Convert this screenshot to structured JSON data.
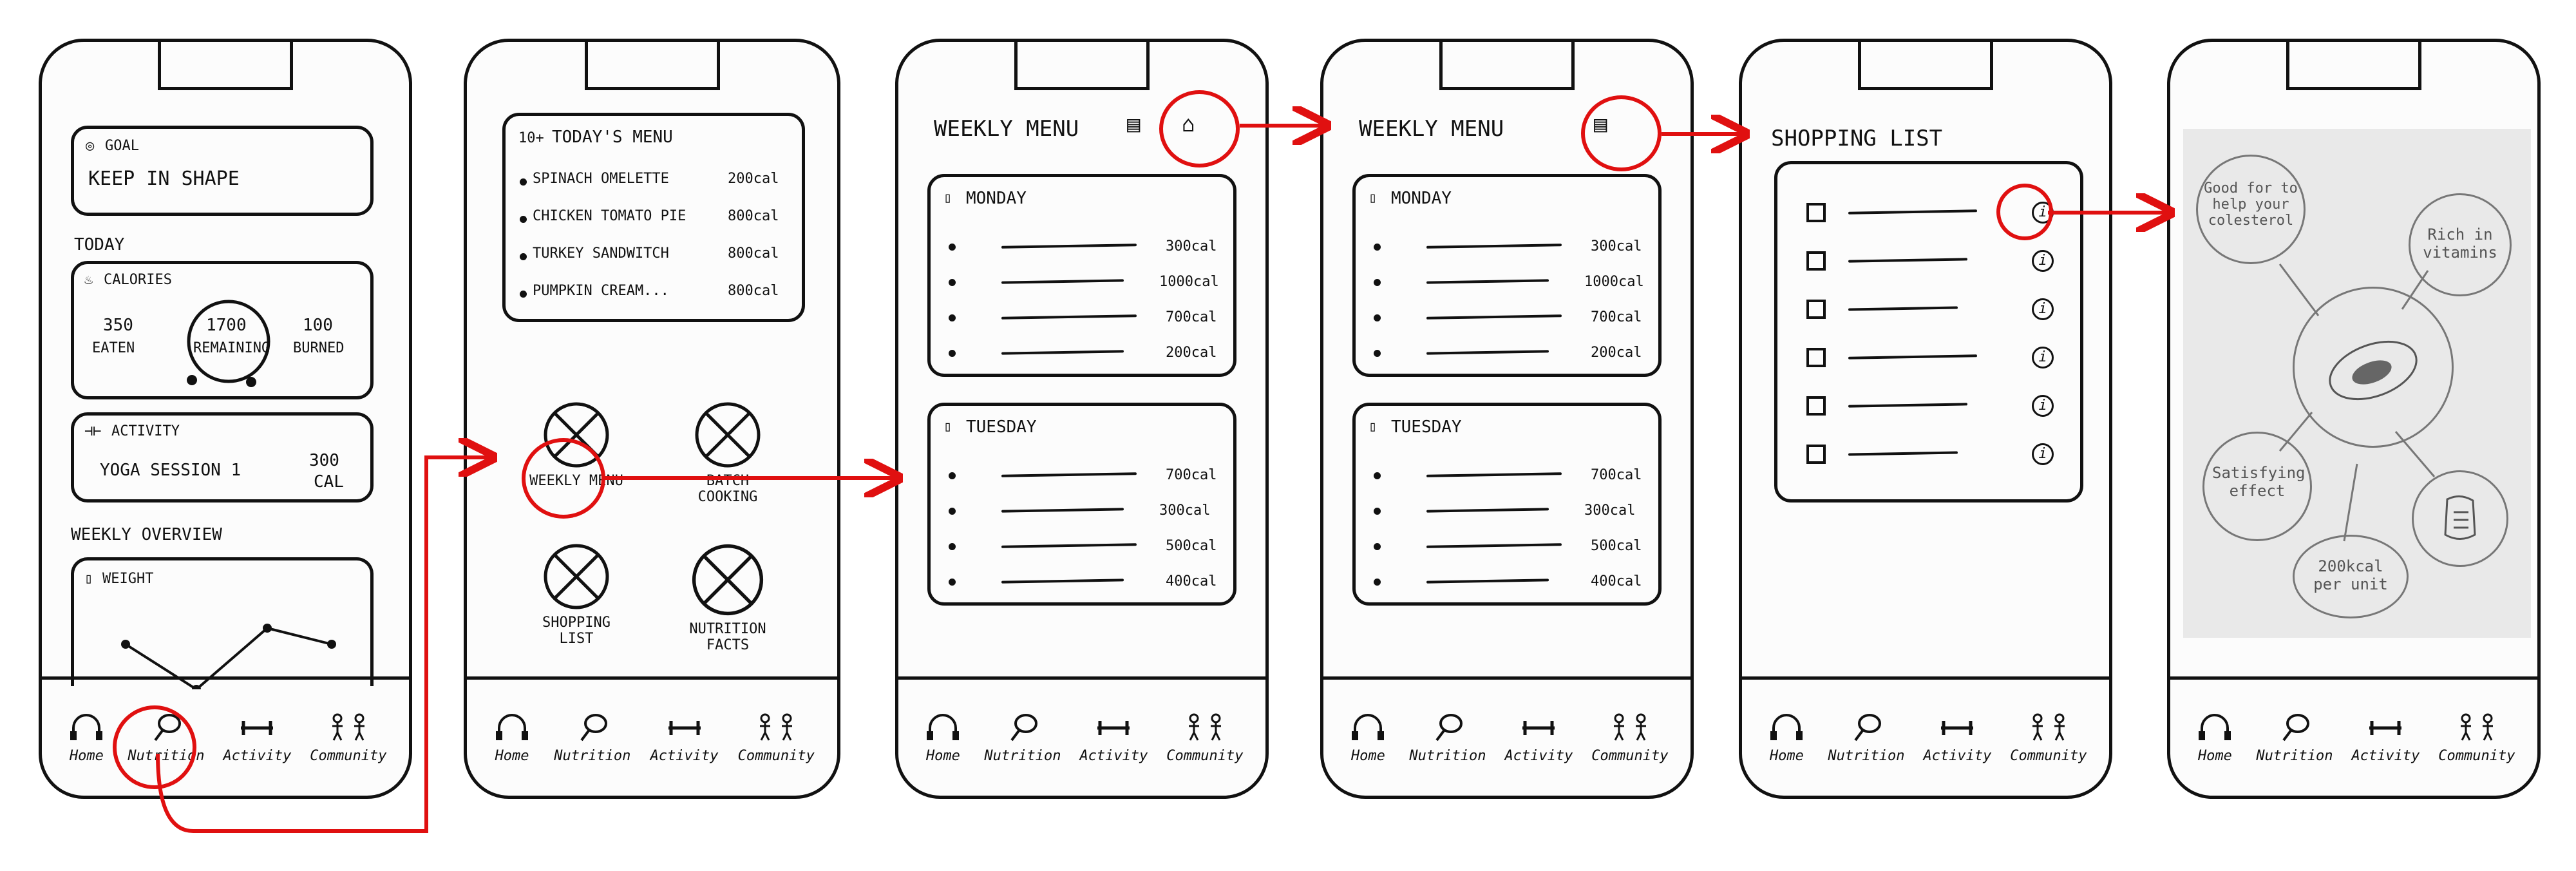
{
  "colors": {
    "ink": "#111111",
    "highlight": "#e01010",
    "paper": "#fcfcfc",
    "sketch_gray": "#777777"
  },
  "tabs": [
    "Home",
    "Nutrition",
    "Activity",
    "Community"
  ],
  "screen1": {
    "goal_label": "GOAL",
    "goal_value": "KEEP IN SHAPE",
    "today_label": "TODAY",
    "calories_label": "CALORIES",
    "eaten_value": "350",
    "eaten_label": "EATEN",
    "remaining_value": "1700",
    "remaining_label": "REMAINING",
    "burned_value": "100",
    "burned_label": "BURNED",
    "activity_label": "ACTIVITY",
    "activity_name": "YOGA SESSION 1",
    "activity_cal_value": "300",
    "activity_cal_unit": "CAL",
    "weekly_overview_label": "WEEKLY OVERVIEW",
    "weight_label": "WEIGHT"
  },
  "screen2": {
    "menu_title": "TODAY'S MENU",
    "menu_items": [
      {
        "name": "SPINACH OMELETTE",
        "cal": "200cal"
      },
      {
        "name": "CHICKEN TOMATO PIE",
        "cal": "800cal"
      },
      {
        "name": "TURKEY SANDWITCH",
        "cal": "800cal"
      },
      {
        "name": "PUMPKIN CREAM...",
        "cal": "800cal"
      }
    ],
    "tiles": [
      "WEEKLY MENU",
      "BATCH COOKING",
      "SHOPPING LIST",
      "NUTRITION FACTS"
    ]
  },
  "screen3": {
    "title": "WEEKLY MENU",
    "days": [
      {
        "name": "MONDAY",
        "cals": [
          "300cal",
          "1000cal",
          "700cal",
          "200cal"
        ]
      },
      {
        "name": "TUESDAY",
        "cals": [
          "700cal",
          "300cal",
          "500cal",
          "400cal"
        ]
      }
    ]
  },
  "screen4": {
    "title": "WEEKLY MENU",
    "days": [
      {
        "name": "MONDAY",
        "cals": [
          "300cal",
          "1000cal",
          "700cal",
          "200cal"
        ]
      },
      {
        "name": "TUESDAY",
        "cals": [
          "700cal",
          "300cal",
          "500cal",
          "400cal"
        ]
      }
    ]
  },
  "screen5": {
    "title": "SHOPPING LIST",
    "item_count": 6,
    "info_glyph": "i"
  },
  "screen6": {
    "notes": [
      "Good for to help your colesterol",
      "Rich in vitamins",
      "Satisfying effect",
      "200kcal per unit"
    ]
  }
}
